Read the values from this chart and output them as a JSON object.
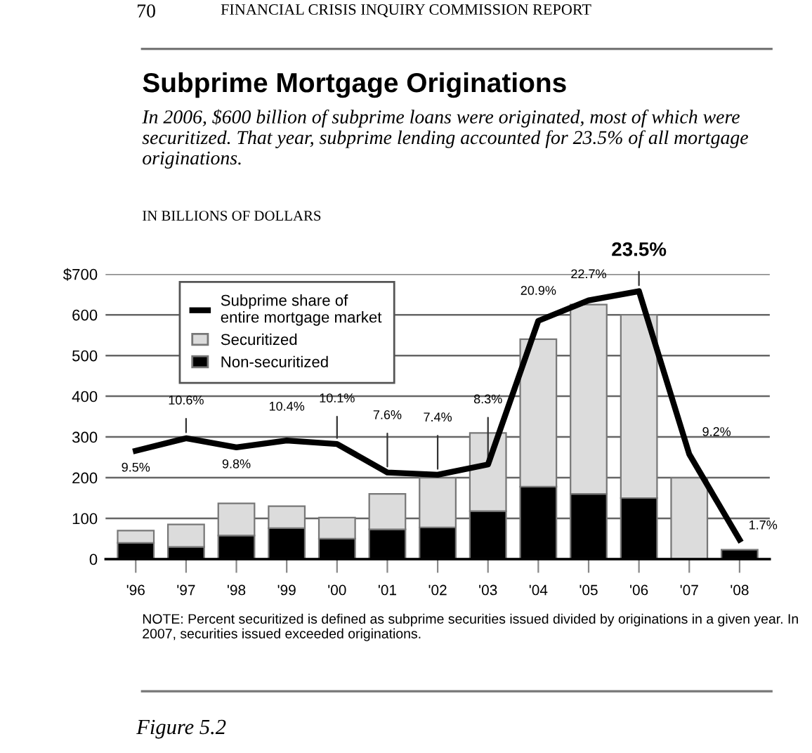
{
  "chart_data": {
    "type": "bar",
    "title": "Subprime Mortgage Originations",
    "subtitle": "In 2006, $600 billion of subprime loans were originated, most of which were securitized. That year, subprime lending accounted for 23.5% of all mortgage originations.",
    "ylabel": "IN BILLIONS OF DOLLARS",
    "categories": [
      "'96",
      "'97",
      "'98",
      "'99",
      "'00",
      "'01",
      "'02",
      "'03",
      "'04",
      "'05",
      "'06",
      "'07",
      "'08"
    ],
    "stacked": true,
    "series": [
      {
        "name": "Non-securitized",
        "color": "#000000",
        "values": [
          40,
          30,
          58,
          76,
          50,
          73,
          78,
          118,
          178,
          160,
          150,
          null,
          23
        ]
      },
      {
        "name": "Securitized",
        "color": "#dcdcdc",
        "values": [
          30,
          55,
          79,
          54,
          52,
          87,
          122,
          192,
          362,
          465,
          450,
          200,
          null
        ]
      },
      {
        "name": "Subprime share of entire mortgage market",
        "type": "line",
        "axis": "y2",
        "color": "#000000",
        "values": [
          9.5,
          10.6,
          9.8,
          10.4,
          10.1,
          7.6,
          7.4,
          8.3,
          20.9,
          22.7,
          23.5,
          9.2,
          1.7
        ],
        "value_labels": [
          "9.5%",
          "10.6%",
          "9.8%",
          "10.4%",
          "10.1%",
          "7.6%",
          "7.4%",
          "8.3%",
          "20.9%",
          "22.7%",
          "23.5%",
          "9.2%",
          "1.7%"
        ]
      }
    ],
    "ylim": [
      0,
      700
    ],
    "yticks": [
      0,
      100,
      200,
      300,
      400,
      500,
      600,
      {
        "value": 700,
        "label": "$700"
      }
    ],
    "y2lim": [
      0,
      25
    ],
    "grid": "y",
    "legend": "top left",
    "marker": "none",
    "line_style": "solid",
    "annotations": [
      "70",
      "FINANCIAL CRISIS INQUIRY COMMISSION REPORT",
      "NOTE: Percent securitized is defined as subprime securities issued divided by originations in a given year. In 2007, securities issued exceeded originations.",
      "Figure 5.2"
    ]
  }
}
